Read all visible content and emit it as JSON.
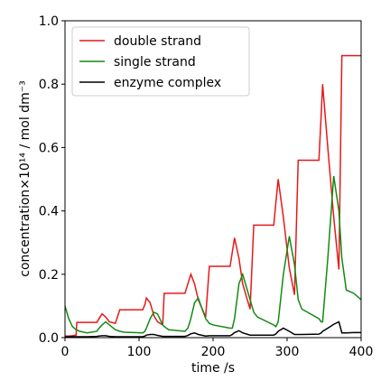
{
  "chart_data": {
    "type": "line",
    "xlabel": "time /s",
    "ylabel": "concentration×10¹⁴ / mol dm⁻³",
    "x": [
      0,
      5,
      10,
      15,
      16,
      20,
      30,
      43,
      46,
      50,
      55,
      60,
      68,
      74,
      80,
      105,
      108,
      110,
      115,
      120,
      125,
      132,
      134,
      140,
      162,
      166,
      170,
      175,
      180,
      190,
      195,
      200,
      223,
      226,
      229,
      235,
      240,
      250,
      255,
      260,
      282,
      285,
      288,
      295,
      303,
      310,
      315,
      320,
      343,
      346,
      348,
      355,
      363,
      370,
      374,
      380,
      390,
      400
    ],
    "series": [
      {
        "name": "double strand",
        "color": "#e41a1c",
        "values": [
          0.005,
          0.005,
          0.006,
          0.008,
          0.048,
          0.048,
          0.048,
          0.048,
          0.06,
          0.075,
          0.065,
          0.05,
          0.045,
          0.088,
          0.088,
          0.088,
          0.105,
          0.125,
          0.11,
          0.07,
          0.05,
          0.04,
          0.14,
          0.14,
          0.14,
          0.17,
          0.2,
          0.17,
          0.12,
          0.065,
          0.225,
          0.225,
          0.225,
          0.27,
          0.315,
          0.25,
          0.17,
          0.09,
          0.355,
          0.355,
          0.355,
          0.43,
          0.5,
          0.38,
          0.22,
          0.135,
          0.56,
          0.56,
          0.56,
          0.7,
          0.8,
          0.6,
          0.38,
          0.215,
          0.89,
          0.89,
          0.89,
          0.89
        ]
      },
      {
        "name": "single strand",
        "color": "#138a13",
        "values": [
          0.1,
          0.06,
          0.035,
          0.025,
          0.024,
          0.02,
          0.015,
          0.02,
          0.03,
          0.04,
          0.05,
          0.04,
          0.025,
          0.02,
          0.017,
          0.015,
          0.02,
          0.03,
          0.06,
          0.08,
          0.075,
          0.04,
          0.035,
          0.025,
          0.02,
          0.03,
          0.06,
          0.11,
          0.125,
          0.06,
          0.045,
          0.04,
          0.03,
          0.03,
          0.06,
          0.17,
          0.2,
          0.12,
          0.08,
          0.065,
          0.04,
          0.035,
          0.05,
          0.2,
          0.32,
          0.23,
          0.12,
          0.09,
          0.06,
          0.05,
          0.05,
          0.25,
          0.51,
          0.4,
          0.25,
          0.15,
          0.14,
          0.12
        ]
      },
      {
        "name": "enzyme complex",
        "color": "#000000",
        "values": [
          0.002,
          0.003,
          0.003,
          0.003,
          0.003,
          0.003,
          0.003,
          0.004,
          0.005,
          0.006,
          0.006,
          0.004,
          0.003,
          0.003,
          0.003,
          0.003,
          0.005,
          0.008,
          0.01,
          0.01,
          0.007,
          0.004,
          0.004,
          0.004,
          0.004,
          0.007,
          0.012,
          0.015,
          0.01,
          0.005,
          0.006,
          0.006,
          0.006,
          0.01,
          0.016,
          0.022,
          0.015,
          0.008,
          0.008,
          0.008,
          0.008,
          0.012,
          0.02,
          0.03,
          0.02,
          0.01,
          0.01,
          0.01,
          0.011,
          0.015,
          0.02,
          0.03,
          0.042,
          0.05,
          0.015,
          0.015,
          0.016,
          0.016
        ]
      }
    ],
    "xlim": [
      0,
      400
    ],
    "xticks": [
      0,
      100,
      200,
      300,
      400
    ],
    "ylim": [
      0,
      1
    ],
    "yticks": [
      {
        "value": 0,
        "label": "0.0"
      },
      0.2,
      0.4,
      0.6,
      0.8,
      {
        "value": 1,
        "label": "1.0"
      }
    ],
    "legend": "upper left"
  }
}
